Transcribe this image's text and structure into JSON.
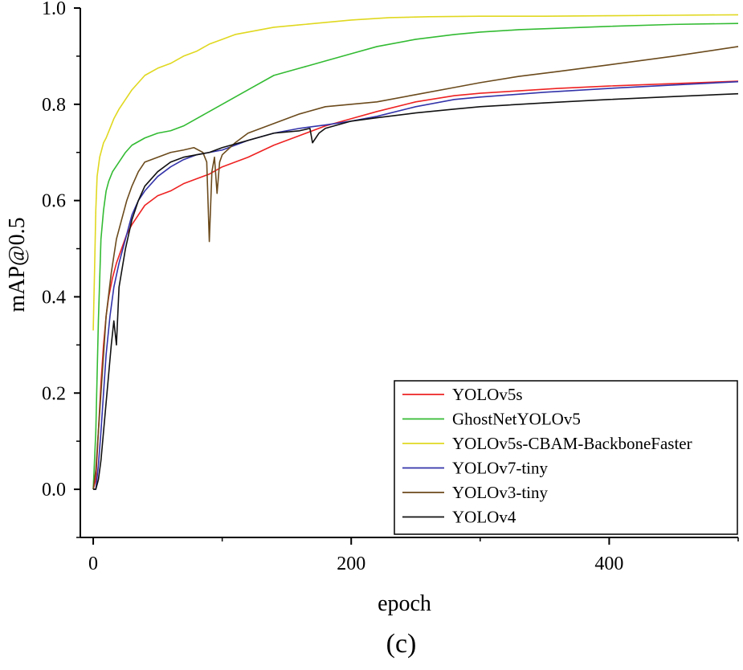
{
  "chart_data": {
    "type": "line",
    "title": "",
    "xlabel": "epoch",
    "ylabel": "mAP@0.5",
    "panel_label": "(c)",
    "xlim": [
      -10,
      500
    ],
    "ylim": [
      -0.1,
      1.0
    ],
    "x_ticks": [
      0,
      200,
      400
    ],
    "x_tick_labels": [
      "0",
      "200",
      "400"
    ],
    "y_ticks": [
      0.0,
      0.2,
      0.4,
      0.6,
      0.8,
      1.0
    ],
    "y_tick_labels": [
      "0.0",
      "0.2",
      "0.4",
      "0.6",
      "0.8",
      "1.0"
    ],
    "grid": false,
    "legend_position": "bottom-right",
    "series": [
      {
        "name": "YOLOv5s",
        "color": "#ee2222",
        "points": [
          [
            0,
            0.0
          ],
          [
            2,
            0.02
          ],
          [
            4,
            0.12
          ],
          [
            6,
            0.22
          ],
          [
            8,
            0.3
          ],
          [
            10,
            0.36
          ],
          [
            12,
            0.4
          ],
          [
            15,
            0.44
          ],
          [
            18,
            0.47
          ],
          [
            22,
            0.5
          ],
          [
            26,
            0.53
          ],
          [
            30,
            0.55
          ],
          [
            35,
            0.57
          ],
          [
            40,
            0.59
          ],
          [
            50,
            0.61
          ],
          [
            60,
            0.62
          ],
          [
            70,
            0.635
          ],
          [
            80,
            0.645
          ],
          [
            90,
            0.655
          ],
          [
            100,
            0.67
          ],
          [
            120,
            0.69
          ],
          [
            140,
            0.715
          ],
          [
            160,
            0.735
          ],
          [
            180,
            0.755
          ],
          [
            200,
            0.77
          ],
          [
            220,
            0.785
          ],
          [
            250,
            0.805
          ],
          [
            280,
            0.818
          ],
          [
            300,
            0.823
          ],
          [
            330,
            0.828
          ],
          [
            360,
            0.833
          ],
          [
            400,
            0.838
          ],
          [
            450,
            0.843
          ],
          [
            500,
            0.848
          ]
        ]
      },
      {
        "name": "GhostNetYOLOv5",
        "color": "#33bb33",
        "points": [
          [
            0,
            0.0
          ],
          [
            2,
            0.12
          ],
          [
            4,
            0.35
          ],
          [
            6,
            0.52
          ],
          [
            8,
            0.58
          ],
          [
            10,
            0.62
          ],
          [
            12,
            0.64
          ],
          [
            15,
            0.66
          ],
          [
            20,
            0.68
          ],
          [
            25,
            0.7
          ],
          [
            30,
            0.715
          ],
          [
            40,
            0.73
          ],
          [
            50,
            0.74
          ],
          [
            60,
            0.745
          ],
          [
            70,
            0.755
          ],
          [
            80,
            0.77
          ],
          [
            90,
            0.785
          ],
          [
            100,
            0.8
          ],
          [
            120,
            0.83
          ],
          [
            140,
            0.86
          ],
          [
            160,
            0.875
          ],
          [
            180,
            0.89
          ],
          [
            200,
            0.905
          ],
          [
            220,
            0.92
          ],
          [
            250,
            0.935
          ],
          [
            280,
            0.945
          ],
          [
            300,
            0.95
          ],
          [
            330,
            0.955
          ],
          [
            360,
            0.958
          ],
          [
            400,
            0.962
          ],
          [
            450,
            0.966
          ],
          [
            500,
            0.968
          ]
        ]
      },
      {
        "name": "YOLOv5s-CBAM-BackboneFaster",
        "color": "#e0d820",
        "points": [
          [
            0,
            0.33
          ],
          [
            1,
            0.45
          ],
          [
            2,
            0.58
          ],
          [
            3,
            0.65
          ],
          [
            5,
            0.69
          ],
          [
            8,
            0.72
          ],
          [
            10,
            0.73
          ],
          [
            13,
            0.75
          ],
          [
            16,
            0.77
          ],
          [
            20,
            0.79
          ],
          [
            25,
            0.81
          ],
          [
            30,
            0.83
          ],
          [
            35,
            0.845
          ],
          [
            40,
            0.86
          ],
          [
            50,
            0.875
          ],
          [
            60,
            0.885
          ],
          [
            70,
            0.9
          ],
          [
            80,
            0.91
          ],
          [
            90,
            0.925
          ],
          [
            100,
            0.935
          ],
          [
            110,
            0.945
          ],
          [
            120,
            0.95
          ],
          [
            140,
            0.96
          ],
          [
            160,
            0.965
          ],
          [
            180,
            0.97
          ],
          [
            200,
            0.975
          ],
          [
            230,
            0.98
          ],
          [
            260,
            0.982
          ],
          [
            300,
            0.983
          ],
          [
            350,
            0.983
          ],
          [
            400,
            0.984
          ],
          [
            450,
            0.985
          ],
          [
            500,
            0.986
          ]
        ]
      },
      {
        "name": "YOLOv7-tiny",
        "color": "#3333aa",
        "points": [
          [
            0,
            0.0
          ],
          [
            2,
            0.0
          ],
          [
            4,
            0.05
          ],
          [
            6,
            0.12
          ],
          [
            8,
            0.2
          ],
          [
            10,
            0.28
          ],
          [
            13,
            0.36
          ],
          [
            16,
            0.42
          ],
          [
            20,
            0.47
          ],
          [
            25,
            0.52
          ],
          [
            30,
            0.57
          ],
          [
            35,
            0.6
          ],
          [
            40,
            0.62
          ],
          [
            50,
            0.65
          ],
          [
            60,
            0.67
          ],
          [
            70,
            0.685
          ],
          [
            80,
            0.695
          ],
          [
            90,
            0.7
          ],
          [
            100,
            0.705
          ],
          [
            110,
            0.715
          ],
          [
            120,
            0.725
          ],
          [
            140,
            0.74
          ],
          [
            160,
            0.75
          ],
          [
            180,
            0.757
          ],
          [
            200,
            0.765
          ],
          [
            220,
            0.775
          ],
          [
            250,
            0.795
          ],
          [
            280,
            0.81
          ],
          [
            300,
            0.815
          ],
          [
            350,
            0.825
          ],
          [
            400,
            0.833
          ],
          [
            450,
            0.84
          ],
          [
            500,
            0.847
          ]
        ]
      },
      {
        "name": "YOLOv3-tiny",
        "color": "#6b4a1c",
        "points": [
          [
            0,
            0.0
          ],
          [
            2,
            0.04
          ],
          [
            4,
            0.12
          ],
          [
            6,
            0.2
          ],
          [
            8,
            0.28
          ],
          [
            10,
            0.36
          ],
          [
            14,
            0.45
          ],
          [
            18,
            0.52
          ],
          [
            22,
            0.56
          ],
          [
            26,
            0.6
          ],
          [
            30,
            0.63
          ],
          [
            35,
            0.66
          ],
          [
            40,
            0.68
          ],
          [
            50,
            0.69
          ],
          [
            60,
            0.7
          ],
          [
            70,
            0.705
          ],
          [
            78,
            0.71
          ],
          [
            85,
            0.7
          ],
          [
            88,
            0.68
          ],
          [
            90,
            0.515
          ],
          [
            92,
            0.66
          ],
          [
            94,
            0.69
          ],
          [
            96,
            0.615
          ],
          [
            98,
            0.68
          ],
          [
            100,
            0.695
          ],
          [
            110,
            0.72
          ],
          [
            120,
            0.74
          ],
          [
            140,
            0.76
          ],
          [
            160,
            0.78
          ],
          [
            180,
            0.795
          ],
          [
            200,
            0.8
          ],
          [
            220,
            0.805
          ],
          [
            250,
            0.82
          ],
          [
            280,
            0.835
          ],
          [
            300,
            0.845
          ],
          [
            330,
            0.858
          ],
          [
            360,
            0.868
          ],
          [
            400,
            0.882
          ],
          [
            450,
            0.9
          ],
          [
            500,
            0.92
          ]
        ]
      },
      {
        "name": "YOLOv4",
        "color": "#111111",
        "points": [
          [
            0,
            0.0
          ],
          [
            2,
            0.0
          ],
          [
            4,
            0.02
          ],
          [
            6,
            0.06
          ],
          [
            8,
            0.12
          ],
          [
            10,
            0.18
          ],
          [
            12,
            0.24
          ],
          [
            14,
            0.3
          ],
          [
            16,
            0.35
          ],
          [
            18,
            0.3
          ],
          [
            20,
            0.42
          ],
          [
            25,
            0.5
          ],
          [
            30,
            0.56
          ],
          [
            35,
            0.6
          ],
          [
            40,
            0.63
          ],
          [
            50,
            0.66
          ],
          [
            60,
            0.68
          ],
          [
            70,
            0.69
          ],
          [
            80,
            0.695
          ],
          [
            90,
            0.7
          ],
          [
            100,
            0.71
          ],
          [
            120,
            0.725
          ],
          [
            140,
            0.74
          ],
          [
            160,
            0.745
          ],
          [
            168,
            0.75
          ],
          [
            170,
            0.72
          ],
          [
            175,
            0.74
          ],
          [
            180,
            0.75
          ],
          [
            200,
            0.765
          ],
          [
            220,
            0.772
          ],
          [
            250,
            0.782
          ],
          [
            280,
            0.79
          ],
          [
            300,
            0.795
          ],
          [
            350,
            0.803
          ],
          [
            400,
            0.81
          ],
          [
            450,
            0.816
          ],
          [
            500,
            0.822
          ]
        ]
      }
    ]
  }
}
